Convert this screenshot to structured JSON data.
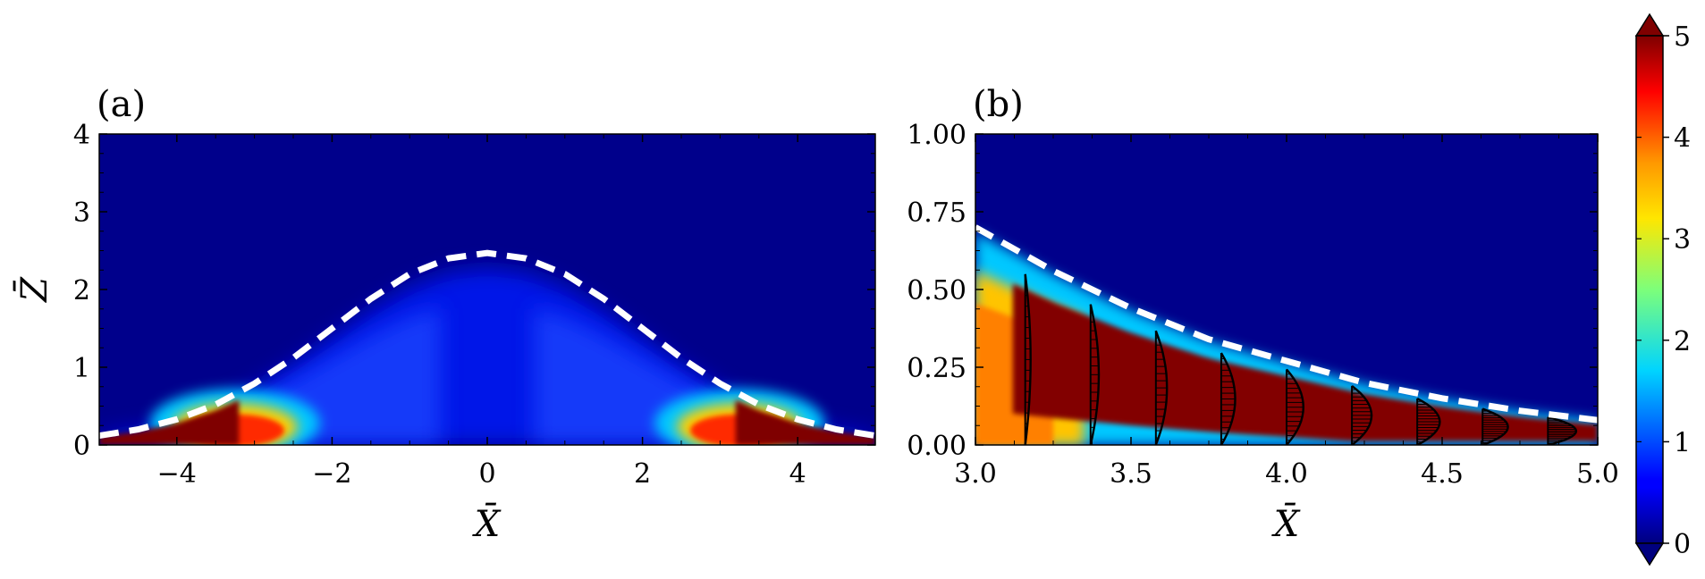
{
  "chart_data": [
    {
      "panel": "(a)",
      "type": "heatmap",
      "xlabel": "X̄",
      "ylabel": "Z̄",
      "xlim": [
        -5,
        5
      ],
      "ylim": [
        0,
        4
      ],
      "xticks": [
        -4,
        -2,
        0,
        2,
        4
      ],
      "xtick_labels": [
        "−4",
        "−2",
        "0",
        "2",
        "4"
      ],
      "yticks": [
        0,
        1,
        2,
        3,
        4
      ],
      "ytick_labels": [
        "0",
        "1",
        "2",
        "3",
        "4"
      ],
      "boundary_curve": {
        "style": "dashed-white",
        "x": [
          -5,
          -4.5,
          -4,
          -3.5,
          -3,
          -2.5,
          -2,
          -1.5,
          -1,
          -0.5,
          0,
          0.5,
          1,
          1.5,
          2,
          2.5,
          3,
          3.5,
          4,
          4.5,
          5
        ],
        "y": [
          0.12,
          0.2,
          0.33,
          0.52,
          0.79,
          1.12,
          1.5,
          1.88,
          2.2,
          2.4,
          2.47,
          2.4,
          2.2,
          1.88,
          1.5,
          1.12,
          0.79,
          0.52,
          0.33,
          0.2,
          0.12
        ]
      }
    },
    {
      "panel": "(b)",
      "type": "heatmap",
      "xlabel": "X̄",
      "ylabel": "",
      "xlim": [
        3.0,
        5.0
      ],
      "ylim": [
        0.0,
        1.0
      ],
      "xticks": [
        3.0,
        3.5,
        4.0,
        4.5,
        5.0
      ],
      "xtick_labels": [
        "3.0",
        "3.5",
        "4.0",
        "4.5",
        "5.0"
      ],
      "yticks": [
        0.0,
        0.25,
        0.5,
        0.75,
        1.0
      ],
      "ytick_labels": [
        "0.00",
        "0.25",
        "0.50",
        "0.75",
        "1.00"
      ],
      "boundary_curve": {
        "style": "dashed-white",
        "x": [
          3.0,
          3.25,
          3.5,
          3.75,
          4.0,
          4.25,
          4.5,
          4.75,
          5.0
        ],
        "y": [
          0.7,
          0.56,
          0.44,
          0.34,
          0.27,
          0.2,
          0.15,
          0.11,
          0.08
        ]
      },
      "velocity_profiles_x": [
        3.16,
        3.37,
        3.58,
        3.79,
        4.0,
        4.21,
        4.42,
        4.63,
        4.84
      ]
    }
  ],
  "colorbar": {
    "min": 0,
    "max": 5,
    "ticks": [
      0,
      1,
      2,
      3,
      4,
      5
    ],
    "tick_labels": [
      "0",
      "1",
      "2",
      "3",
      "4",
      "5"
    ],
    "colormap": "jet",
    "extend": "both"
  }
}
